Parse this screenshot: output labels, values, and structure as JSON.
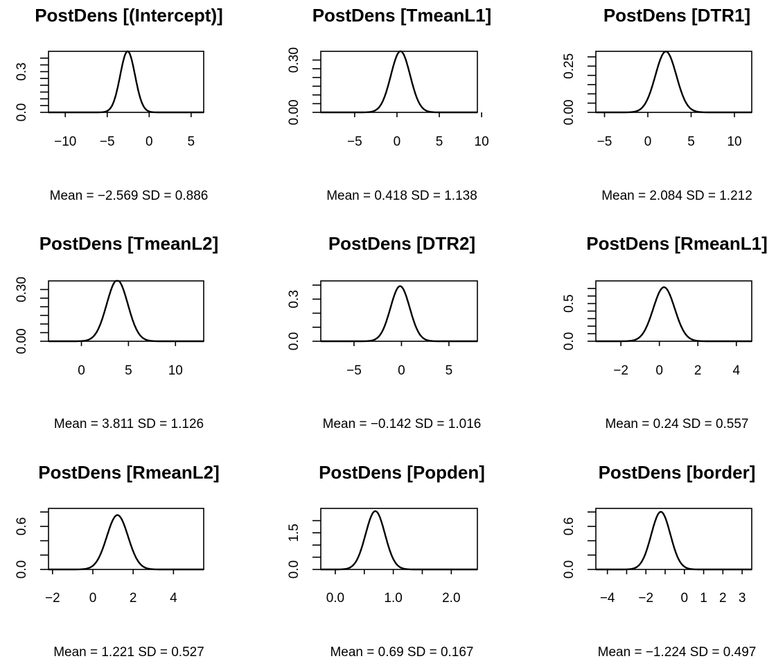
{
  "chart_data": [
    {
      "type": "line",
      "title": "PostDens [(Intercept)]",
      "caption": "Mean = −2.569 SD = 0.886",
      "mean": -2.569,
      "sd": 0.886,
      "xlim": [
        -12,
        6.5
      ],
      "ylim": [
        0,
        0.45
      ],
      "x_ticks": [
        -10,
        -5,
        0,
        5
      ],
      "x_tick_labels": [
        "−10",
        "−5",
        "0",
        "5"
      ],
      "y_labeled_ticks": [
        0,
        0.3
      ],
      "y_tick_labels": [
        "0.0",
        "0.3"
      ],
      "y_minor_ticks": [
        0.05,
        0.1,
        0.15,
        0.2,
        0.25,
        0.35,
        0.4
      ]
    },
    {
      "type": "line",
      "title": "PostDens [TmeanL1]",
      "caption": "Mean = 0.418 SD = 1.138",
      "mean": 0.418,
      "sd": 1.138,
      "xlim": [
        -9,
        9.5
      ],
      "ylim": [
        0,
        0.35
      ],
      "x_ticks": [
        -5,
        0,
        5,
        10
      ],
      "x_tick_labels": [
        "−5",
        "0",
        "5",
        "10"
      ],
      "y_labeled_ticks": [
        0,
        0.3
      ],
      "y_tick_labels": [
        "0.00",
        "0.30"
      ],
      "y_minor_ticks": [
        0.05,
        0.1,
        0.15,
        0.2,
        0.25
      ]
    },
    {
      "type": "line",
      "title": "PostDens [DTR1]",
      "caption": "Mean = 2.084 SD = 1.212",
      "mean": 2.084,
      "sd": 1.212,
      "xlim": [
        -6,
        12
      ],
      "ylim": [
        0,
        0.33
      ],
      "x_ticks": [
        -5,
        0,
        5,
        10
      ],
      "x_tick_labels": [
        "−5",
        "0",
        "5",
        "10"
      ],
      "y_labeled_ticks": [
        0,
        0.25
      ],
      "y_tick_labels": [
        "0.00",
        "0.25"
      ],
      "y_minor_ticks": [
        0.05,
        0.1,
        0.15,
        0.2,
        0.3
      ]
    },
    {
      "type": "line",
      "title": "PostDens [TmeanL2]",
      "caption": "Mean = 3.811 SD = 1.126",
      "mean": 3.811,
      "sd": 1.126,
      "xlim": [
        -3.5,
        13
      ],
      "ylim": [
        0,
        0.35
      ],
      "x_ticks": [
        0,
        5,
        10
      ],
      "x_tick_labels": [
        "0",
        "5",
        "10"
      ],
      "y_labeled_ticks": [
        0,
        0.3
      ],
      "y_tick_labels": [
        "0.00",
        "0.30"
      ],
      "y_minor_ticks": [
        0.05,
        0.1,
        0.15,
        0.2,
        0.25
      ]
    },
    {
      "type": "line",
      "title": "PostDens [DTR2]",
      "caption": "Mean = −0.142 SD = 1.016",
      "mean": -0.142,
      "sd": 1.016,
      "xlim": [
        -8.5,
        8
      ],
      "ylim": [
        0,
        0.43
      ],
      "x_ticks": [
        -5,
        0,
        5
      ],
      "x_tick_labels": [
        "−5",
        "0",
        "5"
      ],
      "y_labeled_ticks": [
        0,
        0.3
      ],
      "y_tick_labels": [
        "0.0",
        "0.3"
      ],
      "y_minor_ticks": [
        0.1,
        0.2,
        0.4
      ]
    },
    {
      "type": "line",
      "title": "PostDens [RmeanL1]",
      "caption": "Mean = 0.24 SD = 0.557",
      "mean": 0.24,
      "sd": 0.557,
      "xlim": [
        -3.3,
        4.8
      ],
      "ylim": [
        0,
        0.8
      ],
      "x_ticks": [
        -2,
        0,
        2,
        4
      ],
      "x_tick_labels": [
        "−2",
        "0",
        "2",
        "4"
      ],
      "y_labeled_ticks": [
        0,
        0.5
      ],
      "y_tick_labels": [
        "0.0",
        "0.5"
      ],
      "y_minor_ticks": [
        0.1,
        0.2,
        0.3,
        0.4,
        0.6,
        0.7
      ]
    },
    {
      "type": "line",
      "title": "PostDens [RmeanL2]",
      "caption": "Mean = 1.221 SD = 0.527",
      "mean": 1.221,
      "sd": 0.527,
      "xlim": [
        -2.2,
        5.5
      ],
      "ylim": [
        0,
        0.85
      ],
      "x_ticks": [
        -2,
        0,
        2,
        4
      ],
      "x_tick_labels": [
        "−2",
        "0",
        "2",
        "4"
      ],
      "y_labeled_ticks": [
        0,
        0.6
      ],
      "y_tick_labels": [
        "0.0",
        "0.6"
      ],
      "y_minor_ticks": [
        0.2,
        0.4,
        0.8
      ]
    },
    {
      "type": "line",
      "title": "PostDens [Popden]",
      "caption": "Mean = 0.69 SD = 0.167",
      "mean": 0.69,
      "sd": 0.167,
      "xlim": [
        -0.25,
        2.45
      ],
      "ylim": [
        0,
        2.5
      ],
      "x_ticks": [
        0,
        1,
        2
      ],
      "x_tick_labels": [
        "0.0",
        "1.0",
        "2.0"
      ],
      "x_minor_ticks": [
        0.5,
        1.5
      ],
      "y_labeled_ticks": [
        0,
        1.5
      ],
      "y_tick_labels": [
        "0.0",
        "1.5"
      ],
      "y_minor_ticks": [
        0.5,
        1.0,
        2.0
      ]
    },
    {
      "type": "line",
      "title": "PostDens [border]",
      "caption": "Mean = −1.224 SD = 0.497",
      "mean": -1.224,
      "sd": 0.497,
      "xlim": [
        -4.6,
        3.5
      ],
      "ylim": [
        0,
        0.85
      ],
      "x_ticks": [
        -4,
        -2,
        0,
        1,
        2,
        3
      ],
      "x_tick_labels": [
        "−4",
        "−2",
        "0",
        "1",
        "2",
        "3"
      ],
      "x_minor_ticks": [
        -3,
        -1
      ],
      "y_labeled_ticks": [
        0,
        0.6
      ],
      "y_tick_labels": [
        "0.0",
        "0.6"
      ],
      "y_minor_ticks": [
        0.2,
        0.4,
        0.8
      ]
    }
  ]
}
